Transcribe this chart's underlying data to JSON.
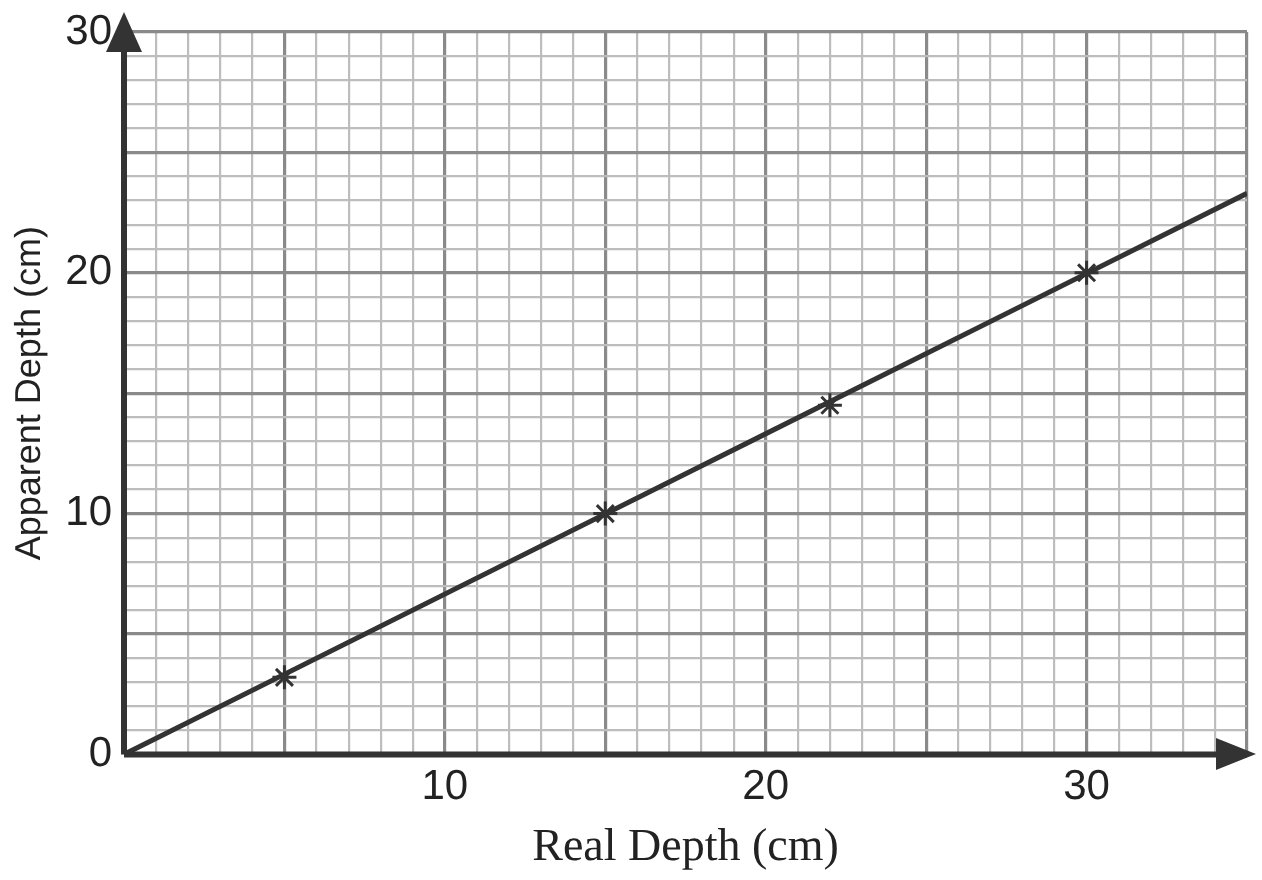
{
  "chart_data": {
    "type": "scatter",
    "xlabel": "Real Depth (cm)",
    "ylabel": "Apparent Depth (cm)",
    "series": [
      {
        "type": "scatter",
        "color": "#333333",
        "marker": "cross",
        "x": [
          5,
          15,
          22,
          30
        ],
        "values": [
          3.2,
          10,
          14.5,
          20
        ]
      },
      {
        "type": "line",
        "color": "#333333",
        "marker": "none",
        "x": [
          0,
          35
        ],
        "values": [
          0,
          23.3
        ]
      }
    ],
    "xlim": [
      0,
      35
    ],
    "xticks": [
      {
        "value": 0,
        "label": null
      },
      {
        "value": 1,
        "label": null
      },
      {
        "value": 2,
        "label": null
      },
      {
        "value": 3,
        "label": null
      },
      {
        "value": 4,
        "label": null
      },
      {
        "value": 5,
        "label": null
      },
      {
        "value": 6,
        "label": null
      },
      {
        "value": 7,
        "label": null
      },
      {
        "value": 8,
        "label": null
      },
      {
        "value": 9,
        "label": null
      },
      10,
      {
        "value": 11,
        "label": null
      },
      {
        "value": 12,
        "label": null
      },
      {
        "value": 13,
        "label": null
      },
      {
        "value": 14,
        "label": null
      },
      {
        "value": 15,
        "label": null
      },
      {
        "value": 16,
        "label": null
      },
      {
        "value": 17,
        "label": null
      },
      {
        "value": 18,
        "label": null
      },
      {
        "value": 19,
        "label": null
      },
      20,
      {
        "value": 21,
        "label": null
      },
      {
        "value": 22,
        "label": null
      },
      {
        "value": 23,
        "label": null
      },
      {
        "value": 24,
        "label": null
      },
      {
        "value": 25,
        "label": null
      },
      {
        "value": 26,
        "label": null
      },
      {
        "value": 27,
        "label": null
      },
      {
        "value": 28,
        "label": null
      },
      {
        "value": 29,
        "label": null
      },
      30,
      {
        "value": 31,
        "label": null
      },
      {
        "value": 32,
        "label": null
      },
      {
        "value": 33,
        "label": null
      },
      {
        "value": 34,
        "label": null
      },
      {
        "value": 35,
        "label": null
      }
    ],
    "ylim": [
      0,
      30
    ],
    "yticks": [
      0,
      {
        "value": 1,
        "label": null
      },
      {
        "value": 2,
        "label": null
      },
      {
        "value": 3,
        "label": null
      },
      {
        "value": 4,
        "label": null
      },
      {
        "value": 5,
        "label": null
      },
      {
        "value": 6,
        "label": null
      },
      {
        "value": 7,
        "label": null
      },
      {
        "value": 8,
        "label": null
      },
      {
        "value": 9,
        "label": null
      },
      10,
      {
        "value": 11,
        "label": null
      },
      {
        "value": 12,
        "label": null
      },
      {
        "value": 13,
        "label": null
      },
      {
        "value": 14,
        "label": null
      },
      {
        "value": 15,
        "label": null
      },
      {
        "value": 16,
        "label": null
      },
      {
        "value": 17,
        "label": null
      },
      {
        "value": 18,
        "label": null
      },
      {
        "value": 19,
        "label": null
      },
      20,
      {
        "value": 21,
        "label": null
      },
      {
        "value": 22,
        "label": null
      },
      {
        "value": 23,
        "label": null
      },
      {
        "value": 24,
        "label": null
      },
      {
        "value": 25,
        "label": null
      },
      {
        "value": 26,
        "label": null
      },
      {
        "value": 27,
        "label": null
      },
      {
        "value": 28,
        "label": null
      },
      {
        "value": 29,
        "label": null
      },
      30
    ],
    "grid": true,
    "legend": false
  }
}
